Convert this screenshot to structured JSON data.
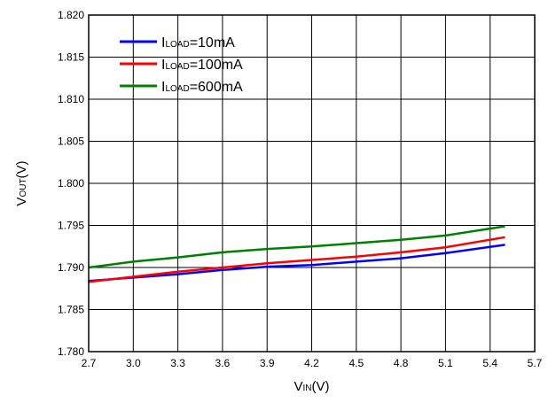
{
  "chart_data": {
    "type": "line",
    "xlabel": {
      "main": "V",
      "sub": "IN",
      "suffix": "(V)"
    },
    "ylabel": {
      "main": "V",
      "sub": "OUT",
      "suffix": "(V)"
    },
    "xlim": [
      2.7,
      5.7
    ],
    "ylim": [
      1.78,
      1.82
    ],
    "x_ticks": [
      "2.7",
      "3.0",
      "3.3",
      "3.6",
      "3.9",
      "4.2",
      "4.5",
      "4.8",
      "5.1",
      "5.4",
      "5.7"
    ],
    "y_ticks": [
      "1.780",
      "1.785",
      "1.790",
      "1.795",
      "1.800",
      "1.805",
      "1.810",
      "1.815",
      "1.820"
    ],
    "x_tick_values": [
      2.7,
      3.0,
      3.3,
      3.6,
      3.9,
      4.2,
      4.5,
      4.8,
      5.1,
      5.4,
      5.7
    ],
    "y_tick_values": [
      1.78,
      1.785,
      1.79,
      1.795,
      1.8,
      1.805,
      1.81,
      1.815,
      1.82
    ],
    "grid": true,
    "legend_position": "top-left",
    "series": [
      {
        "label": {
          "main": "I",
          "sub": "LOAD",
          "suffix": "=10mA"
        },
        "color": "#0000ff",
        "points": [
          [
            2.7,
            1.7884
          ],
          [
            3.0,
            1.7888
          ],
          [
            3.3,
            1.7892
          ],
          [
            3.6,
            1.7897
          ],
          [
            3.9,
            1.7901
          ],
          [
            4.2,
            1.7903
          ],
          [
            4.5,
            1.7907
          ],
          [
            4.8,
            1.7911
          ],
          [
            5.1,
            1.7917
          ],
          [
            5.5,
            1.7927
          ]
        ]
      },
      {
        "label": {
          "main": "I",
          "sub": "LOAD",
          "suffix": "=100mA"
        },
        "color": "#ff0000",
        "points": [
          [
            2.7,
            1.7883
          ],
          [
            3.0,
            1.7889
          ],
          [
            3.3,
            1.7895
          ],
          [
            3.6,
            1.79
          ],
          [
            3.9,
            1.7905
          ],
          [
            4.2,
            1.7909
          ],
          [
            4.5,
            1.7913
          ],
          [
            4.8,
            1.7918
          ],
          [
            5.1,
            1.7924
          ],
          [
            5.5,
            1.7936
          ]
        ]
      },
      {
        "label": {
          "main": "I",
          "sub": "LOAD",
          "suffix": "=600mA"
        },
        "color": "#008000",
        "points": [
          [
            2.7,
            1.79
          ],
          [
            3.0,
            1.7907
          ],
          [
            3.3,
            1.7912
          ],
          [
            3.6,
            1.7918
          ],
          [
            3.9,
            1.7922
          ],
          [
            4.2,
            1.7925
          ],
          [
            4.5,
            1.7929
          ],
          [
            4.8,
            1.7933
          ],
          [
            5.1,
            1.7938
          ],
          [
            5.5,
            1.7949
          ]
        ]
      }
    ]
  }
}
